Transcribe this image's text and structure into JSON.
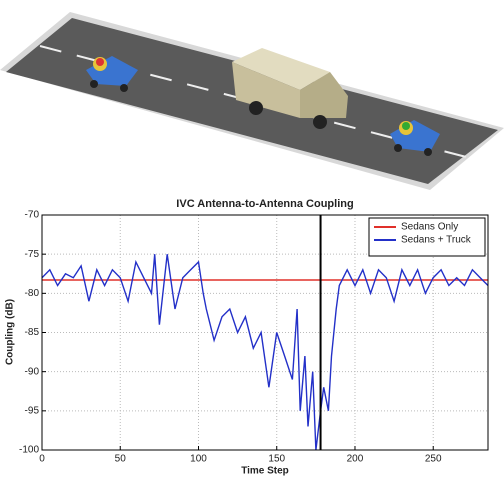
{
  "chart_data": {
    "type": "line",
    "title": "IVC Antenna-to-Antenna Coupling",
    "x_label": "Time Step",
    "y_label": "Coupling (dB)",
    "xlim": [
      0,
      285
    ],
    "xticks": [
      0,
      50,
      100,
      150,
      200,
      250
    ],
    "ylim": [
      -100,
      -70
    ],
    "yticks": [
      -70,
      -75,
      -80,
      -85,
      -90,
      -95,
      -100
    ],
    "grid": true,
    "legend": "upper right",
    "vline": 178,
    "vline_color": "#000000",
    "series": [
      {
        "name": "Sedans Only",
        "color": "#e0302a",
        "x": [
          0,
          285
        ],
        "values": [
          -78.3,
          -78.3
        ]
      },
      {
        "name": "Sedans + Truck",
        "color": "#2330c8",
        "x": [
          0,
          5,
          10,
          15,
          20,
          25,
          30,
          35,
          40,
          45,
          50,
          55,
          60,
          65,
          70,
          72,
          75,
          80,
          85,
          90,
          95,
          100,
          103,
          105,
          110,
          115,
          120,
          125,
          130,
          135,
          140,
          145,
          150,
          155,
          160,
          163,
          165,
          168,
          170,
          173,
          175,
          178,
          180,
          183,
          185,
          188,
          190,
          195,
          200,
          205,
          210,
          215,
          220,
          225,
          230,
          235,
          240,
          245,
          250,
          255,
          260,
          265,
          270,
          275,
          280,
          285
        ],
        "values": [
          -78,
          -77,
          -79,
          -77.5,
          -78,
          -76.5,
          -81,
          -77,
          -79,
          -77,
          -78,
          -81,
          -76,
          -78,
          -80,
          -75,
          -84,
          -75,
          -82,
          -78,
          -77,
          -76,
          -80,
          -82,
          -86,
          -83,
          -82,
          -85,
          -83,
          -87,
          -85,
          -92,
          -85,
          -88,
          -91,
          -82,
          -95,
          -88,
          -97,
          -90,
          -100,
          -95,
          -92,
          -95,
          -88,
          -82,
          -79,
          -77,
          -79,
          -77,
          -80,
          -77,
          -78,
          -81,
          -77,
          -79,
          -77,
          -80,
          -78,
          -77,
          -79,
          -78,
          -79,
          -77,
          -78,
          -79
        ]
      }
    ]
  }
}
